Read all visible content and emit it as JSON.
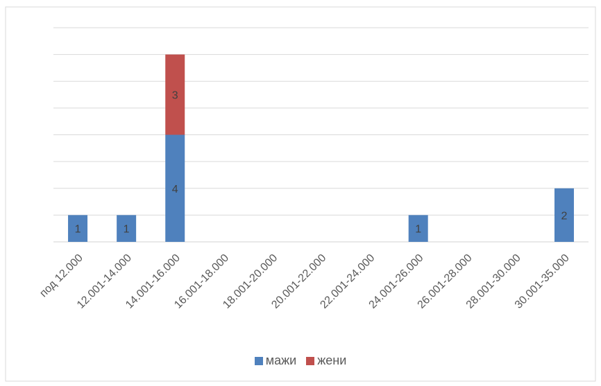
{
  "chart_data": {
    "type": "bar",
    "stacked": true,
    "categories": [
      "под 12.000",
      "12.001-14.000",
      "14.001-16.000",
      "16.001-18.000",
      "18.001-20.000",
      "20.001-22.000",
      "22.001-24.000",
      "24.001-26.000",
      "26.001-28.000",
      "28.001-30.000",
      "30.001-35.000"
    ],
    "series": [
      {
        "name": "мажи",
        "color": "#4f81bd",
        "values": [
          1,
          1,
          4,
          0,
          0,
          0,
          0,
          1,
          0,
          0,
          2
        ]
      },
      {
        "name": "жени",
        "color": "#c0504d",
        "values": [
          0,
          0,
          3,
          0,
          0,
          0,
          0,
          0,
          0,
          0,
          0
        ]
      }
    ],
    "ylim": [
      0,
      8
    ],
    "grid": true,
    "y_tick_labels_visible": false,
    "data_labels": true,
    "legend_position": "bottom"
  }
}
